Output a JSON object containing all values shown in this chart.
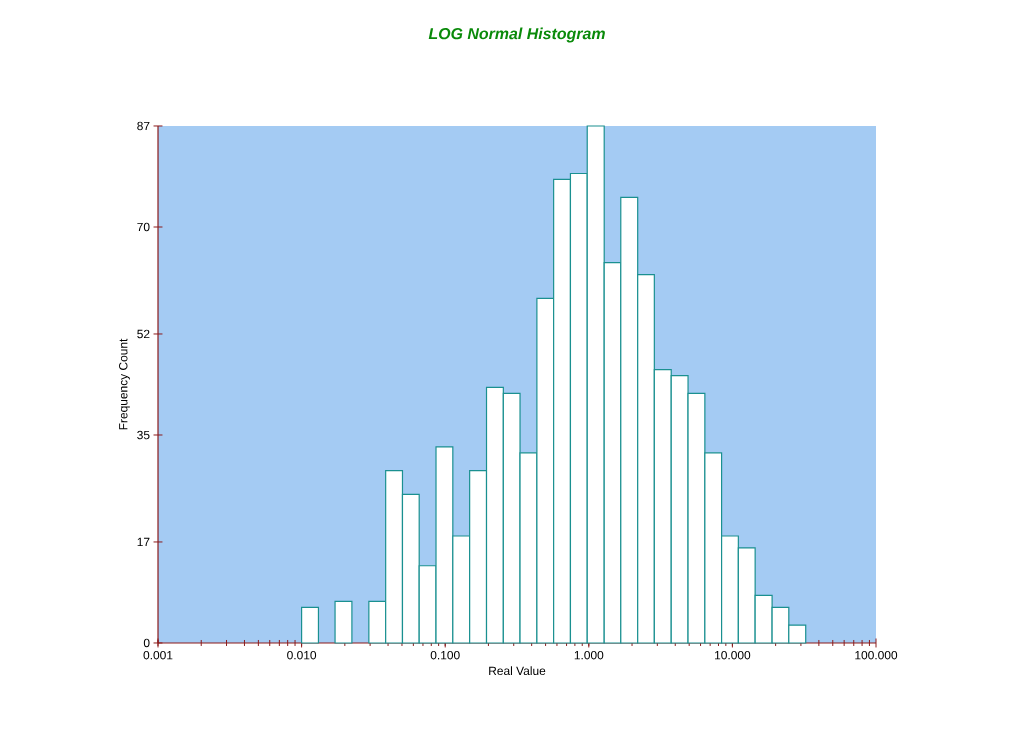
{
  "chart_data": {
    "type": "histogram",
    "title": "LOG Normal Histogram",
    "xlabel": "Real Value",
    "ylabel": "Frequency Count",
    "bins": [
      0.01,
      0.0131,
      0.0171,
      0.0224,
      0.0294,
      0.0385,
      0.0504,
      0.0659,
      0.0863,
      0.113,
      0.148,
      0.194,
      0.254,
      0.332,
      0.435,
      0.569,
      0.745,
      0.975,
      1.28,
      1.67,
      2.19,
      2.86,
      3.75,
      4.91,
      6.43,
      8.41,
      11.0,
      14.4,
      18.9,
      24.7,
      32.4
    ],
    "values": [
      6,
      0,
      7,
      0,
      7,
      29,
      25,
      13,
      33,
      18,
      29,
      43,
      42,
      32,
      58,
      78,
      79,
      87,
      64,
      75,
      62,
      46,
      45,
      42,
      32,
      18,
      16,
      8,
      6,
      3
    ],
    "color": "#ffffff",
    "log": "x",
    "xlim": [
      0.001,
      100
    ],
    "ylim": [
      0,
      87
    ],
    "xticks": [
      {
        "value": 0.001,
        "label": "0.001"
      },
      {
        "value": 0.01,
        "label": "0.010"
      },
      {
        "value": 0.1,
        "label": "0.100"
      },
      {
        "value": 1,
        "label": "1.000"
      },
      {
        "value": 10,
        "label": "10.000"
      },
      {
        "value": 100,
        "label": "100.000"
      }
    ],
    "yticks": [
      0,
      17,
      35,
      52,
      70,
      87
    ],
    "grid": false
  }
}
